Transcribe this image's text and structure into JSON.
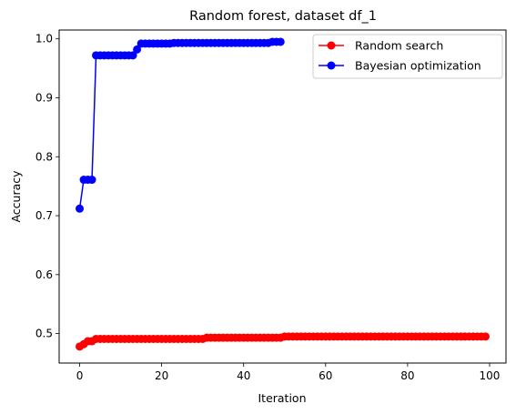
{
  "chart_data": {
    "type": "line",
    "title": "Random forest, dataset df_1",
    "xlabel": "Iteration",
    "ylabel": "Accuracy",
    "xlim": [
      -5,
      104
    ],
    "ylim": [
      0.45,
      1.015
    ],
    "xticks": [
      0,
      20,
      40,
      60,
      80,
      100
    ],
    "yticks": [
      0.5,
      0.6,
      0.7,
      0.8,
      0.9,
      1.0
    ],
    "xtick_labels": [
      "0",
      "20",
      "40",
      "60",
      "80",
      "100"
    ],
    "ytick_labels": [
      "0.5",
      "0.6",
      "0.7",
      "0.8",
      "0.9",
      "1.0"
    ],
    "grid": false,
    "legend_position": "top-right",
    "series": [
      {
        "name": "Random search",
        "color": "#ff0000",
        "marker": "circle",
        "x": [
          0,
          1,
          2,
          3,
          4,
          5,
          6,
          7,
          8,
          9,
          10,
          11,
          12,
          13,
          14,
          15,
          16,
          17,
          18,
          19,
          20,
          21,
          22,
          23,
          24,
          25,
          26,
          27,
          28,
          29,
          30,
          31,
          32,
          33,
          34,
          35,
          36,
          37,
          38,
          39,
          40,
          41,
          42,
          43,
          44,
          45,
          46,
          47,
          48,
          49,
          50,
          51,
          52,
          53,
          54,
          55,
          56,
          57,
          58,
          59,
          60,
          61,
          62,
          63,
          64,
          65,
          66,
          67,
          68,
          69,
          70,
          71,
          72,
          73,
          74,
          75,
          76,
          77,
          78,
          79,
          80,
          81,
          82,
          83,
          84,
          85,
          86,
          87,
          88,
          89,
          90,
          91,
          92,
          93,
          94,
          95,
          96,
          97,
          98,
          99
        ],
        "y": [
          0.478,
          0.482,
          0.487,
          0.487,
          0.491,
          0.491,
          0.491,
          0.491,
          0.491,
          0.491,
          0.491,
          0.491,
          0.491,
          0.491,
          0.491,
          0.491,
          0.491,
          0.491,
          0.491,
          0.491,
          0.491,
          0.491,
          0.491,
          0.491,
          0.491,
          0.491,
          0.491,
          0.491,
          0.491,
          0.491,
          0.491,
          0.493,
          0.493,
          0.493,
          0.493,
          0.493,
          0.493,
          0.493,
          0.493,
          0.493,
          0.493,
          0.493,
          0.493,
          0.493,
          0.493,
          0.493,
          0.493,
          0.493,
          0.493,
          0.493,
          0.495,
          0.495,
          0.495,
          0.495,
          0.495,
          0.495,
          0.495,
          0.495,
          0.495,
          0.495,
          0.495,
          0.495,
          0.495,
          0.495,
          0.495,
          0.495,
          0.495,
          0.495,
          0.495,
          0.495,
          0.495,
          0.495,
          0.495,
          0.495,
          0.495,
          0.495,
          0.495,
          0.495,
          0.495,
          0.495,
          0.495,
          0.495,
          0.495,
          0.495,
          0.495,
          0.495,
          0.495,
          0.495,
          0.495,
          0.495,
          0.495,
          0.495,
          0.495,
          0.495,
          0.495,
          0.495,
          0.495,
          0.495,
          0.495,
          0.495
        ]
      },
      {
        "name": "Bayesian optimization",
        "color": "#0000ff",
        "marker": "circle",
        "x": [
          0,
          1,
          2,
          3,
          4,
          5,
          6,
          7,
          8,
          9,
          10,
          11,
          12,
          13,
          14,
          15,
          16,
          17,
          18,
          19,
          20,
          21,
          22,
          23,
          24,
          25,
          26,
          27,
          28,
          29,
          30,
          31,
          32,
          33,
          34,
          35,
          36,
          37,
          38,
          39,
          40,
          41,
          42,
          43,
          44,
          45,
          46,
          47,
          48,
          49
        ],
        "y": [
          0.712,
          0.761,
          0.761,
          0.761,
          0.972,
          0.972,
          0.972,
          0.972,
          0.972,
          0.972,
          0.972,
          0.972,
          0.972,
          0.972,
          0.982,
          0.992,
          0.992,
          0.992,
          0.992,
          0.992,
          0.992,
          0.992,
          0.992,
          0.993,
          0.993,
          0.993,
          0.993,
          0.993,
          0.993,
          0.993,
          0.993,
          0.993,
          0.993,
          0.993,
          0.993,
          0.993,
          0.993,
          0.993,
          0.993,
          0.993,
          0.993,
          0.993,
          0.993,
          0.993,
          0.993,
          0.993,
          0.993,
          0.995,
          0.995,
          0.995
        ]
      }
    ]
  }
}
